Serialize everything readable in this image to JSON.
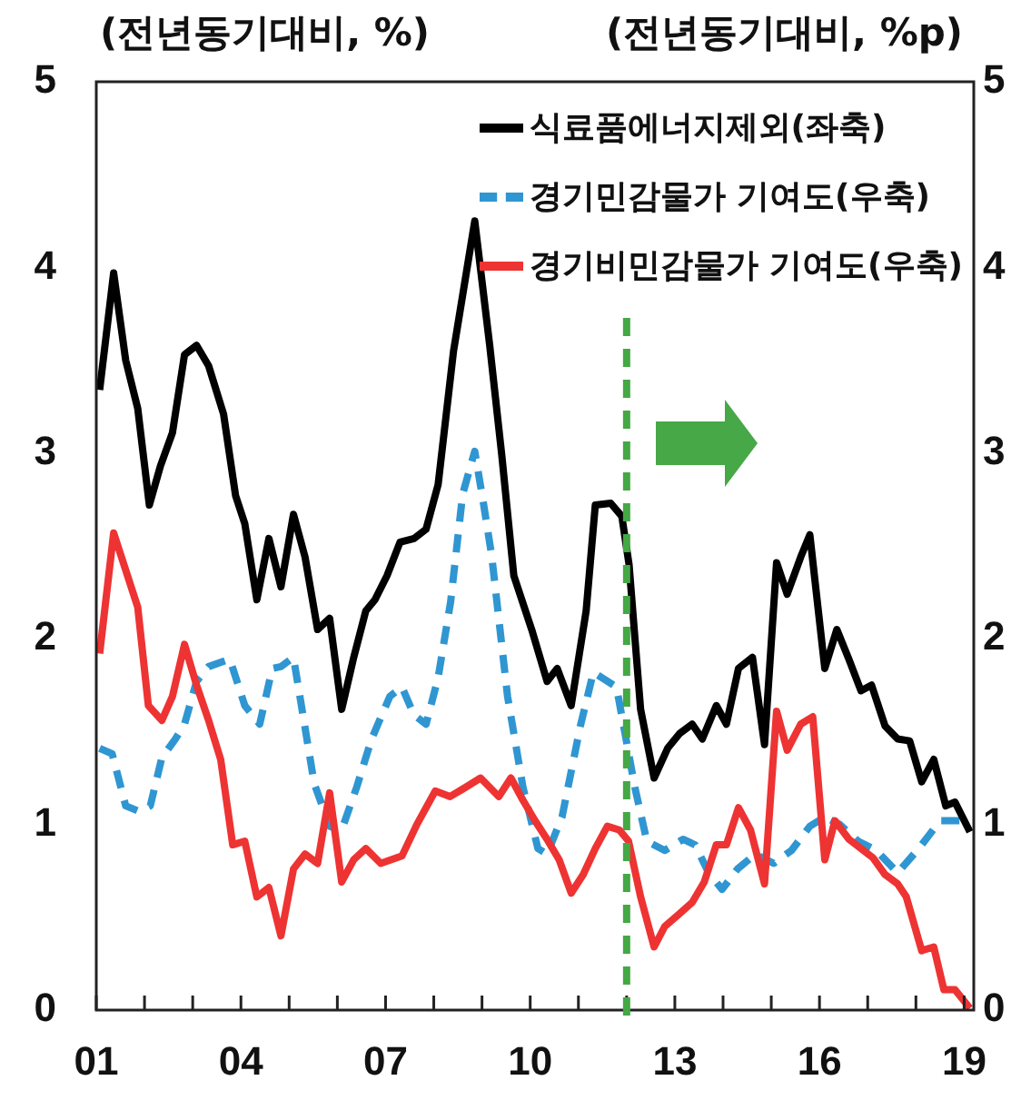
{
  "chart_data": {
    "type": "line",
    "ylabel": "(전년동기대비, %)",
    "y2label": "(전년동기대비, %p)",
    "legend": "top right",
    "xlim": [
      2001,
      2019.2
    ],
    "xticks": [
      {
        "value": 2001,
        "label": "01"
      },
      {
        "value": 2002,
        "label": null
      },
      {
        "value": 2003,
        "label": null
      },
      {
        "value": 2004,
        "label": "04"
      },
      {
        "value": 2005,
        "label": null
      },
      {
        "value": 2006,
        "label": null
      },
      {
        "value": 2007,
        "label": "07"
      },
      {
        "value": 2008,
        "label": null
      },
      {
        "value": 2009,
        "label": null
      },
      {
        "value": 2010,
        "label": "10"
      },
      {
        "value": 2011,
        "label": null
      },
      {
        "value": 2012,
        "label": null
      },
      {
        "value": 2013,
        "label": "13"
      },
      {
        "value": 2014,
        "label": null
      },
      {
        "value": 2015,
        "label": null
      },
      {
        "value": 2016,
        "label": "16"
      },
      {
        "value": 2017,
        "label": null
      },
      {
        "value": 2018,
        "label": null
      },
      {
        "value": 2019,
        "label": "19"
      }
    ],
    "ylim": [
      0,
      5
    ],
    "yticks": [
      0,
      1,
      2,
      3,
      4,
      5
    ],
    "y2lim": [
      0,
      5
    ],
    "y2ticks": [
      0,
      1,
      2,
      3,
      4,
      5
    ],
    "ref_lines": [
      {
        "axis": "x",
        "value": 2012,
        "color": "#44a844",
        "line_style": "dashed"
      }
    ],
    "series": [
      {
        "name": "식료품에너지제외(좌축)",
        "color": "#000000",
        "axis": "y",
        "x": [
          2001.07,
          2001.36,
          2001.61,
          2001.86,
          2002.1,
          2002.33,
          2002.58,
          2002.83,
          2003.08,
          2003.33,
          2003.64,
          2003.89,
          2004.08,
          2004.33,
          2004.58,
          2004.83,
          2005.09,
          2005.33,
          2005.59,
          2005.84,
          2006.09,
          2006.34,
          2006.59,
          2006.78,
          2007.03,
          2007.3,
          2007.59,
          2007.84,
          2008.09,
          2008.41,
          2008.85,
          2009.16,
          2009.41,
          2009.66,
          2010.03,
          2010.35,
          2010.56,
          2010.85,
          2011.16,
          2011.35,
          2011.67,
          2011.9,
          2012.05,
          2012.29,
          2012.57,
          2012.85,
          2013.1,
          2013.36,
          2013.57,
          2013.86,
          2014.07,
          2014.32,
          2014.61,
          2014.86,
          2015.11,
          2015.33,
          2015.61,
          2015.8,
          2016.11,
          2016.36,
          2016.61,
          2016.86,
          2017.08,
          2017.36,
          2017.62,
          2017.87,
          2018.12,
          2018.37,
          2018.62,
          2018.81,
          2019.12
        ],
        "values": [
          3.34,
          3.97,
          3.5,
          3.24,
          2.72,
          2.93,
          3.11,
          3.53,
          3.58,
          3.47,
          3.21,
          2.77,
          2.62,
          2.21,
          2.54,
          2.28,
          2.67,
          2.44,
          2.05,
          2.11,
          1.62,
          1.9,
          2.15,
          2.21,
          2.34,
          2.52,
          2.54,
          2.59,
          2.83,
          3.55,
          4.25,
          3.58,
          2.99,
          2.34,
          2.05,
          1.77,
          1.84,
          1.64,
          2.15,
          2.72,
          2.73,
          2.66,
          2.4,
          1.62,
          1.25,
          1.41,
          1.49,
          1.54,
          1.46,
          1.64,
          1.54,
          1.84,
          1.9,
          1.43,
          2.41,
          2.24,
          2.44,
          2.56,
          1.84,
          2.05,
          1.89,
          1.72,
          1.75,
          1.53,
          1.46,
          1.45,
          1.23,
          1.35,
          1.1,
          1.12,
          0.96
        ]
      },
      {
        "name": "경기민감물가 기여도(우축)",
        "color": "#2f96d2",
        "axis": "y2",
        "line_style": "dashed",
        "x": [
          2001.07,
          2001.33,
          2001.61,
          2001.89,
          2002.12,
          2002.36,
          2002.64,
          2002.83,
          2003.08,
          2003.33,
          2003.77,
          2004.08,
          2004.39,
          2004.65,
          2004.83,
          2005.09,
          2005.52,
          2005.84,
          2006.09,
          2006.4,
          2006.71,
          2007.09,
          2007.34,
          2007.59,
          2007.84,
          2008.09,
          2008.35,
          2008.6,
          2008.85,
          2009.03,
          2009.2,
          2009.53,
          2009.85,
          2010.16,
          2010.35,
          2010.66,
          2011.04,
          2011.31,
          2011.79,
          2012.17,
          2012.42,
          2012.79,
          2013.17,
          2013.42,
          2013.7,
          2013.98,
          2014.3,
          2014.67,
          2015.05,
          2015.42,
          2015.8,
          2016.11,
          2016.42,
          2016.8,
          2017.18,
          2017.62,
          2018.06,
          2018.5,
          2018.94
        ],
        "values": [
          1.41,
          1.38,
          1.1,
          1.07,
          1.1,
          1.36,
          1.46,
          1.54,
          1.77,
          1.85,
          1.89,
          1.64,
          1.54,
          1.84,
          1.85,
          1.9,
          1.22,
          0.99,
          0.97,
          1.2,
          1.46,
          1.69,
          1.74,
          1.59,
          1.54,
          1.79,
          2.2,
          2.78,
          3.01,
          2.73,
          2.45,
          1.69,
          1.2,
          0.87,
          0.84,
          1.04,
          1.53,
          1.82,
          1.74,
          1.2,
          0.91,
          0.86,
          0.92,
          0.89,
          0.74,
          0.65,
          0.76,
          0.84,
          0.79,
          0.86,
          0.99,
          1.04,
          1.0,
          0.91,
          0.86,
          0.74,
          0.87,
          1.02,
          1.02
        ]
      },
      {
        "name": "경기비민감물가 기여도(우축)",
        "color": "#ee3333",
        "axis": "y2",
        "x": [
          2001.07,
          2001.36,
          2001.86,
          2002.08,
          2002.36,
          2002.58,
          2002.83,
          2003.08,
          2003.33,
          2003.58,
          2003.83,
          2004.08,
          2004.33,
          2004.58,
          2004.83,
          2005.09,
          2005.33,
          2005.59,
          2005.84,
          2006.09,
          2006.34,
          2006.59,
          2006.9,
          2007.34,
          2007.65,
          2008.03,
          2008.34,
          2008.66,
          2008.97,
          2009.35,
          2009.6,
          2009.85,
          2010.1,
          2010.35,
          2010.6,
          2010.85,
          2011.1,
          2011.35,
          2011.6,
          2011.85,
          2012.04,
          2012.29,
          2012.57,
          2012.79,
          2013.1,
          2013.36,
          2013.61,
          2013.86,
          2014.07,
          2014.32,
          2014.57,
          2014.86,
          2015.11,
          2015.33,
          2015.61,
          2015.86,
          2016.11,
          2016.32,
          2016.61,
          2016.86,
          2017.11,
          2017.36,
          2017.62,
          2017.8,
          2018.12,
          2018.37,
          2018.58,
          2018.81,
          2019.12
        ],
        "values": [
          1.92,
          2.57,
          2.17,
          1.64,
          1.56,
          1.69,
          1.97,
          1.75,
          1.56,
          1.35,
          0.89,
          0.91,
          0.61,
          0.66,
          0.4,
          0.76,
          0.84,
          0.79,
          1.17,
          0.69,
          0.81,
          0.87,
          0.79,
          0.83,
          1.0,
          1.18,
          1.15,
          1.2,
          1.25,
          1.15,
          1.25,
          1.13,
          1.02,
          0.92,
          0.81,
          0.63,
          0.73,
          0.87,
          0.99,
          0.97,
          0.91,
          0.61,
          0.34,
          0.45,
          0.52,
          0.58,
          0.69,
          0.89,
          0.89,
          1.09,
          0.97,
          0.68,
          1.61,
          1.4,
          1.54,
          1.58,
          0.81,
          1.02,
          0.92,
          0.87,
          0.82,
          0.73,
          0.68,
          0.61,
          0.32,
          0.34,
          0.11,
          0.11,
          0.01
        ]
      }
    ]
  }
}
